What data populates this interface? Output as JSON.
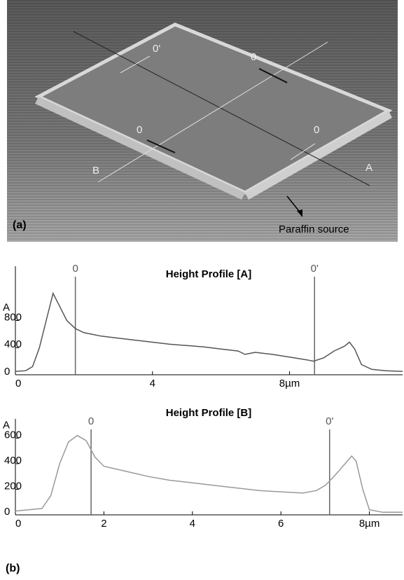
{
  "image": {
    "panel_label": "(a)",
    "annotation": "Paraffin source",
    "labels": [
      "0'",
      "0",
      "0",
      "0",
      "B",
      "A"
    ]
  },
  "panel_b_label": "(b)",
  "chart_data": [
    {
      "type": "line",
      "title": "Height Profile [A]",
      "ylabel": "A",
      "color": "#555555",
      "x": [
        0,
        0.3,
        0.5,
        0.7,
        0.9,
        1.1,
        1.25,
        1.5,
        1.75,
        2,
        2.5,
        3,
        3.5,
        4,
        4.5,
        5,
        5.5,
        6,
        6.5,
        6.7,
        7,
        7.5,
        8,
        8.5,
        8.7,
        9,
        9.3,
        9.6,
        9.75,
        9.9,
        10.1,
        10.4,
        10.8,
        11.3
      ],
      "values": [
        50,
        60,
        120,
        400,
        800,
        1200,
        1050,
        800,
        680,
        620,
        570,
        540,
        510,
        480,
        450,
        430,
        410,
        380,
        350,
        300,
        330,
        300,
        260,
        220,
        200,
        250,
        350,
        420,
        480,
        380,
        150,
        80,
        60,
        50
      ],
      "xlim": [
        0,
        11.3
      ],
      "ylim": [
        0,
        1600
      ],
      "xticks": [
        0,
        4,
        {
          "value": 8,
          "label": "8µm"
        }
      ],
      "yticks": [
        0,
        400,
        800
      ],
      "markers": [
        {
          "label": "0",
          "x": 1.75
        },
        {
          "label": "0'",
          "x": 8.73
        }
      ]
    },
    {
      "type": "line",
      "title": "Height Profile [B]",
      "ylabel": "A",
      "color": "#999999",
      "x": [
        0,
        0.3,
        0.6,
        0.8,
        1,
        1.2,
        1.4,
        1.6,
        1.8,
        2,
        2.5,
        3,
        3.5,
        4,
        4.5,
        5,
        5.5,
        6,
        6.5,
        6.8,
        7,
        7.2,
        7.4,
        7.6,
        7.7,
        7.85,
        8,
        8.3,
        8.75
      ],
      "values": [
        30,
        40,
        50,
        150,
        400,
        570,
        620,
        580,
        450,
        380,
        340,
        300,
        270,
        250,
        230,
        210,
        190,
        180,
        170,
        190,
        230,
        300,
        380,
        460,
        420,
        200,
        40,
        20,
        20
      ],
      "xlim": [
        0,
        8.75
      ],
      "ylim": [
        0,
        750
      ],
      "xticks": [
        0,
        2,
        4,
        6,
        {
          "value": 8,
          "label": "8µm"
        }
      ],
      "yticks": [
        0,
        200,
        400,
        600
      ],
      "markers": [
        {
          "label": "0",
          "x": 1.71
        },
        {
          "label": "0'",
          "x": 7.1
        }
      ]
    }
  ]
}
